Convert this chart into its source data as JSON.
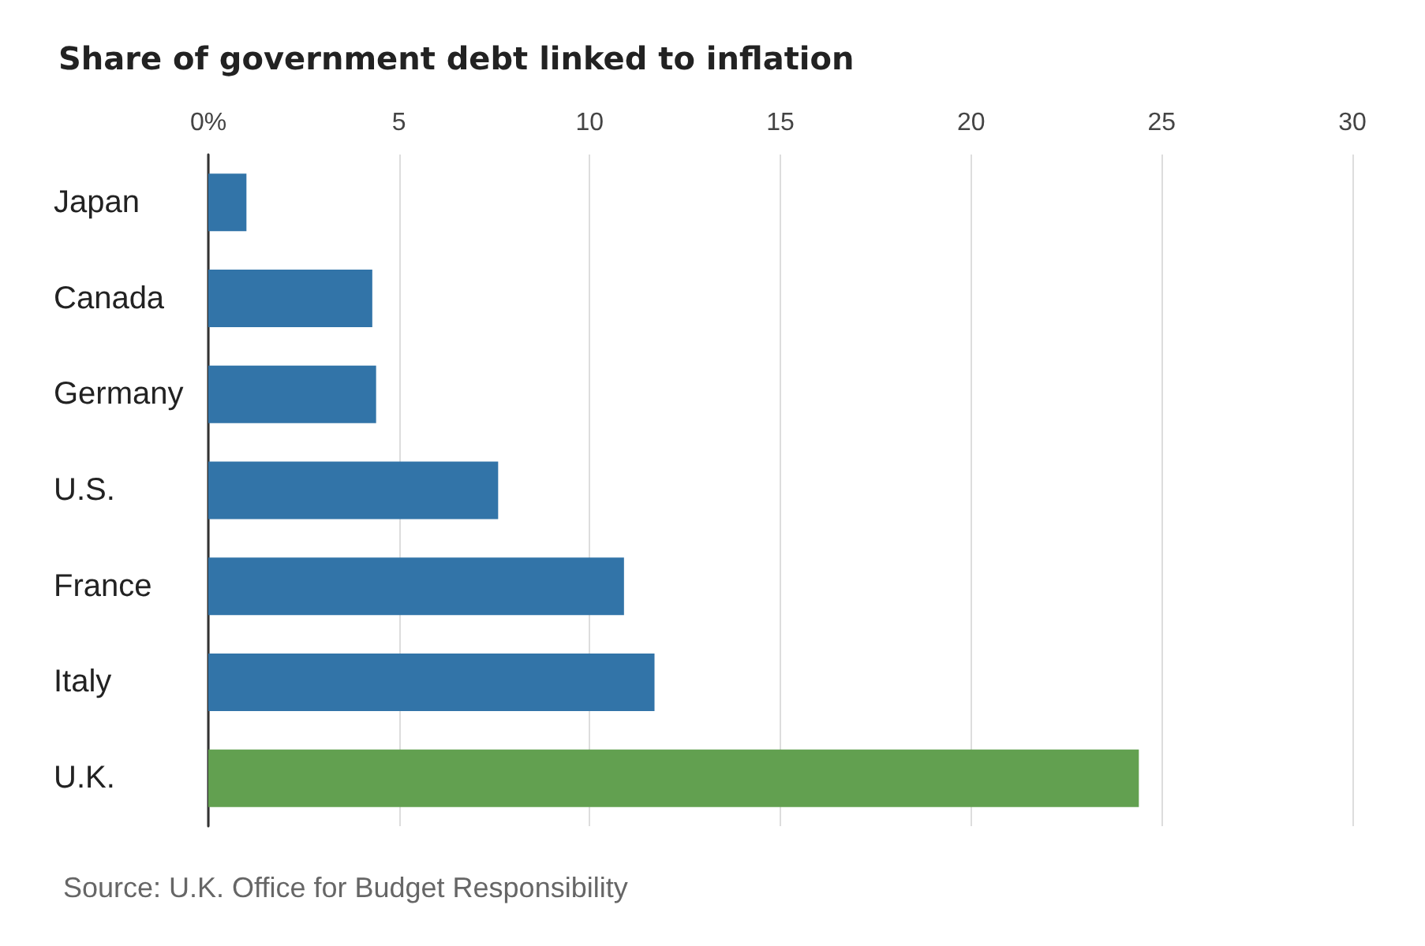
{
  "chart_data": {
    "type": "bar",
    "orientation": "horizontal",
    "title": "Share of government debt linked to inflation",
    "categories": [
      "Japan",
      "Canada",
      "Germany",
      "U.S.",
      "France",
      "Italy",
      "U.K."
    ],
    "values": [
      1.0,
      4.3,
      4.4,
      7.6,
      10.9,
      11.7,
      24.4
    ],
    "colors": [
      "#3274a8",
      "#3274a8",
      "#3274a8",
      "#3274a8",
      "#3274a8",
      "#3274a8",
      "#62a050"
    ],
    "xlim": [
      0,
      30
    ],
    "xticks": [
      {
        "value": 0,
        "label": "0%"
      },
      5,
      10,
      15,
      20,
      25,
      30
    ],
    "grid": "x",
    "annotations": [
      "Source: U.K. Office for Budget Responsibility"
    ]
  }
}
